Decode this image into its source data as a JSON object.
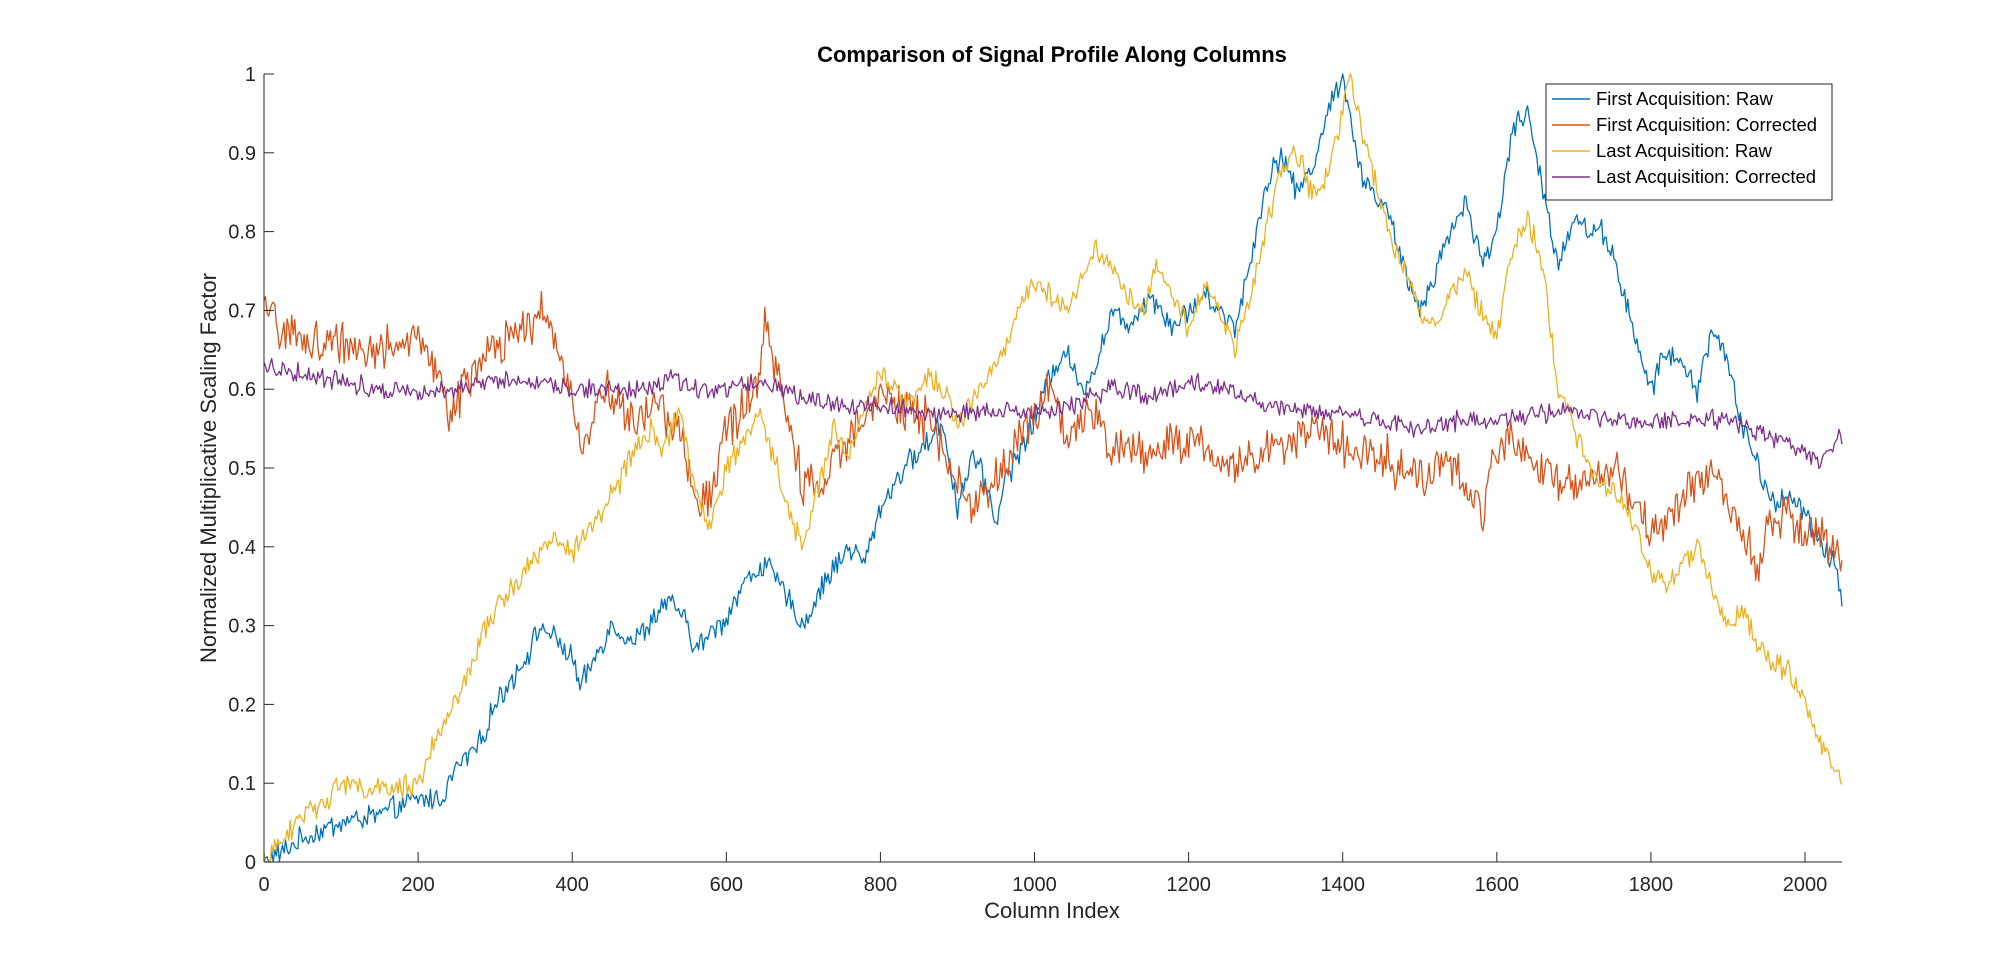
{
  "chart_data": {
    "type": "line",
    "title": "Comparison of Signal Profile Along Columns",
    "xlabel": "Column Index",
    "ylabel": "Normalized Multiplicative Scaling Factor",
    "xlim": [
      0,
      2048
    ],
    "ylim": [
      0,
      1
    ],
    "xticks": [
      0,
      200,
      400,
      600,
      800,
      1000,
      1200,
      1400,
      1600,
      1800,
      2000
    ],
    "yticks": [
      0,
      0.1,
      0.2,
      0.3,
      0.4,
      0.5,
      0.6,
      0.7,
      0.8,
      0.9,
      1
    ],
    "xtick_labels": [
      "0",
      "200",
      "400",
      "600",
      "800",
      "1000",
      "1200",
      "1400",
      "1600",
      "1800",
      "2000"
    ],
    "ytick_labels": [
      "0",
      "0.1",
      "0.2",
      "0.3",
      "0.4",
      "0.5",
      "0.6",
      "0.7",
      "0.8",
      "0.9",
      "1"
    ],
    "grid": false,
    "legend": "top-right",
    "series": [
      {
        "name": "First Acquisition: Raw",
        "color": "#0072BD",
        "noise": 0.012,
        "x": [
          0,
          20,
          50,
          100,
          150,
          200,
          230,
          250,
          280,
          300,
          340,
          360,
          380,
          400,
          410,
          420,
          440,
          450,
          480,
          500,
          520,
          540,
          560,
          580,
          600,
          620,
          650,
          670,
          700,
          730,
          760,
          780,
          800,
          830,
          860,
          880,
          900,
          920,
          940,
          950,
          960,
          980,
          1000,
          1020,
          1040,
          1060,
          1080,
          1100,
          1120,
          1150,
          1180,
          1200,
          1220,
          1240,
          1260,
          1280,
          1300,
          1320,
          1340,
          1360,
          1380,
          1400,
          1410,
          1420,
          1440,
          1460,
          1480,
          1500,
          1520,
          1540,
          1560,
          1580,
          1600,
          1620,
          1640,
          1660,
          1680,
          1700,
          1720,
          1740,
          1760,
          1780,
          1800,
          1820,
          1840,
          1860,
          1880,
          1900,
          1920,
          1940,
          1960,
          1980,
          2000,
          2020,
          2040,
          2048
        ],
        "y": [
          0,
          0.01,
          0.03,
          0.05,
          0.06,
          0.08,
          0.08,
          0.12,
          0.15,
          0.2,
          0.26,
          0.3,
          0.28,
          0.26,
          0.22,
          0.24,
          0.28,
          0.3,
          0.28,
          0.3,
          0.33,
          0.32,
          0.27,
          0.29,
          0.31,
          0.35,
          0.38,
          0.35,
          0.3,
          0.36,
          0.4,
          0.38,
          0.45,
          0.5,
          0.53,
          0.56,
          0.45,
          0.52,
          0.47,
          0.43,
          0.48,
          0.52,
          0.56,
          0.62,
          0.65,
          0.6,
          0.63,
          0.7,
          0.68,
          0.72,
          0.68,
          0.7,
          0.72,
          0.7,
          0.68,
          0.76,
          0.86,
          0.9,
          0.85,
          0.88,
          0.95,
          1.0,
          0.95,
          0.88,
          0.85,
          0.82,
          0.75,
          0.7,
          0.75,
          0.8,
          0.84,
          0.76,
          0.8,
          0.93,
          0.95,
          0.85,
          0.76,
          0.82,
          0.8,
          0.8,
          0.74,
          0.66,
          0.6,
          0.65,
          0.63,
          0.6,
          0.68,
          0.63,
          0.55,
          0.5,
          0.45,
          0.47,
          0.44,
          0.4,
          0.38,
          0.33
        ]
      },
      {
        "name": "First Acquisition: Corrected",
        "color": "#D95319",
        "noise": 0.022,
        "x": [
          0,
          20,
          50,
          100,
          150,
          200,
          230,
          240,
          260,
          300,
          340,
          360,
          380,
          400,
          410,
          420,
          440,
          460,
          480,
          500,
          520,
          540,
          560,
          580,
          600,
          640,
          650,
          670,
          700,
          720,
          750,
          780,
          800,
          820,
          860,
          880,
          900,
          920,
          940,
          960,
          980,
          1000,
          1020,
          1040,
          1060,
          1080,
          1100,
          1150,
          1200,
          1250,
          1300,
          1350,
          1400,
          1450,
          1470,
          1500,
          1550,
          1580,
          1600,
          1620,
          1650,
          1700,
          1750,
          1800,
          1820,
          1850,
          1880,
          1900,
          1920,
          1940,
          1950,
          1980,
          2000,
          2020,
          2048
        ],
        "y": [
          0.7,
          0.68,
          0.66,
          0.66,
          0.65,
          0.66,
          0.62,
          0.56,
          0.61,
          0.65,
          0.68,
          0.7,
          0.65,
          0.6,
          0.52,
          0.55,
          0.6,
          0.58,
          0.55,
          0.58,
          0.57,
          0.55,
          0.45,
          0.47,
          0.55,
          0.6,
          0.68,
          0.6,
          0.48,
          0.47,
          0.52,
          0.58,
          0.6,
          0.58,
          0.56,
          0.52,
          0.49,
          0.45,
          0.47,
          0.5,
          0.55,
          0.56,
          0.6,
          0.54,
          0.56,
          0.56,
          0.53,
          0.52,
          0.54,
          0.5,
          0.52,
          0.55,
          0.53,
          0.52,
          0.5,
          0.49,
          0.5,
          0.44,
          0.52,
          0.55,
          0.5,
          0.48,
          0.5,
          0.42,
          0.43,
          0.47,
          0.5,
          0.46,
          0.42,
          0.38,
          0.43,
          0.44,
          0.42,
          0.41,
          0.39
        ]
      },
      {
        "name": "Last Acquisition: Raw",
        "color": "#EDB120",
        "noise": 0.012,
        "x": [
          0,
          20,
          50,
          80,
          100,
          150,
          200,
          220,
          250,
          280,
          300,
          340,
          360,
          380,
          400,
          420,
          440,
          460,
          480,
          500,
          520,
          540,
          560,
          580,
          600,
          620,
          640,
          660,
          680,
          700,
          720,
          740,
          760,
          780,
          800,
          820,
          840,
          860,
          880,
          900,
          920,
          940,
          960,
          980,
          1000,
          1020,
          1040,
          1060,
          1080,
          1100,
          1120,
          1140,
          1160,
          1180,
          1200,
          1220,
          1240,
          1260,
          1280,
          1300,
          1320,
          1340,
          1360,
          1380,
          1400,
          1410,
          1420,
          1440,
          1460,
          1480,
          1500,
          1520,
          1540,
          1560,
          1580,
          1600,
          1620,
          1640,
          1660,
          1680,
          1700,
          1720,
          1740,
          1760,
          1780,
          1800,
          1820,
          1840,
          1860,
          1880,
          1900,
          1920,
          1940,
          1960,
          1980,
          2000,
          2020,
          2040,
          2048
        ],
        "y": [
          0,
          0.02,
          0.06,
          0.08,
          0.1,
          0.09,
          0.1,
          0.15,
          0.2,
          0.28,
          0.32,
          0.37,
          0.4,
          0.41,
          0.39,
          0.42,
          0.45,
          0.48,
          0.52,
          0.55,
          0.52,
          0.58,
          0.46,
          0.43,
          0.5,
          0.53,
          0.57,
          0.52,
          0.45,
          0.4,
          0.48,
          0.55,
          0.52,
          0.58,
          0.62,
          0.6,
          0.58,
          0.62,
          0.6,
          0.56,
          0.58,
          0.62,
          0.65,
          0.7,
          0.74,
          0.72,
          0.7,
          0.74,
          0.78,
          0.76,
          0.72,
          0.7,
          0.76,
          0.72,
          0.68,
          0.73,
          0.7,
          0.65,
          0.72,
          0.8,
          0.88,
          0.9,
          0.85,
          0.87,
          0.96,
          1.0,
          0.95,
          0.87,
          0.8,
          0.75,
          0.7,
          0.68,
          0.72,
          0.75,
          0.7,
          0.67,
          0.78,
          0.82,
          0.75,
          0.6,
          0.55,
          0.5,
          0.48,
          0.46,
          0.42,
          0.37,
          0.35,
          0.38,
          0.4,
          0.35,
          0.3,
          0.32,
          0.27,
          0.25,
          0.24,
          0.2,
          0.15,
          0.12,
          0.1
        ]
      },
      {
        "name": "Last Acquisition: Corrected",
        "color": "#7E2F8E",
        "noise": 0.01,
        "x": [
          0,
          50,
          100,
          150,
          200,
          250,
          300,
          350,
          400,
          450,
          500,
          530,
          550,
          600,
          650,
          700,
          750,
          800,
          850,
          900,
          950,
          1000,
          1050,
          1100,
          1150,
          1200,
          1250,
          1300,
          1350,
          1400,
          1450,
          1500,
          1550,
          1600,
          1650,
          1700,
          1750,
          1800,
          1850,
          1900,
          1950,
          2000,
          2020,
          2048
        ],
        "y": [
          0.63,
          0.62,
          0.61,
          0.6,
          0.6,
          0.6,
          0.61,
          0.61,
          0.6,
          0.6,
          0.6,
          0.62,
          0.6,
          0.6,
          0.61,
          0.59,
          0.58,
          0.58,
          0.57,
          0.57,
          0.57,
          0.57,
          0.58,
          0.6,
          0.59,
          0.61,
          0.6,
          0.58,
          0.57,
          0.57,
          0.56,
          0.55,
          0.56,
          0.56,
          0.57,
          0.57,
          0.56,
          0.56,
          0.56,
          0.56,
          0.54,
          0.52,
          0.51,
          0.54
        ]
      }
    ]
  }
}
